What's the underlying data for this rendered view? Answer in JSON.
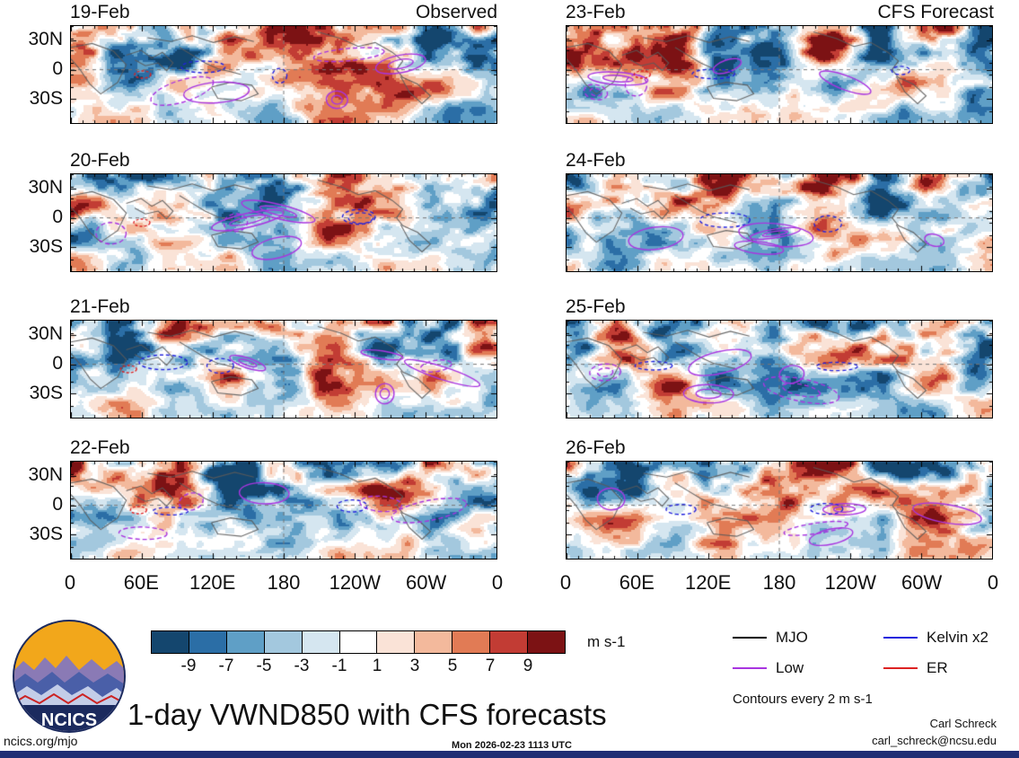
{
  "figure": {
    "title": "1-day VWND850 with CFS forecasts",
    "units_label": "m s-1",
    "contour_note": "Contours every 2 m s-1",
    "credit_name": "Carl Schreck",
    "credit_email": "carl_schreck@ncsu.edu",
    "footer_left": "ncics.org/mjo",
    "footer_center": "Mon 2026-02-23 1113 UTC",
    "logo_text": "NCICS"
  },
  "columns": [
    {
      "header": "Observed"
    },
    {
      "header": "CFS Forecast"
    }
  ],
  "panels": [
    {
      "date": "19-Feb",
      "column": "Observed"
    },
    {
      "date": "20-Feb",
      "column": "Observed"
    },
    {
      "date": "21-Feb",
      "column": "Observed"
    },
    {
      "date": "22-Feb",
      "column": "Observed"
    },
    {
      "date": "23-Feb",
      "column": "CFS Forecast"
    },
    {
      "date": "24-Feb",
      "column": "CFS Forecast"
    },
    {
      "date": "25-Feb",
      "column": "CFS Forecast"
    },
    {
      "date": "26-Feb",
      "column": "CFS Forecast"
    }
  ],
  "axes": {
    "y_ticks": [
      "30N",
      "0",
      "30S"
    ],
    "x_ticks": [
      "0",
      "60E",
      "120E",
      "180",
      "120W",
      "60W",
      "0"
    ]
  },
  "legend": [
    {
      "label": "MJO",
      "color": "#000000"
    },
    {
      "label": "Low",
      "color": "#a835e0"
    },
    {
      "label": "Kelvin x2",
      "color": "#2222dd"
    },
    {
      "label": "ER",
      "color": "#dd2222"
    }
  ],
  "colorbar": {
    "tick_labels": [
      "-9",
      "-7",
      "-5",
      "-3",
      "-1",
      "1",
      "3",
      "5",
      "7",
      "9"
    ]
  },
  "chart_data": {
    "type": "heatmap",
    "subtype": "filled-contour longitude-latitude anomaly maps",
    "title": "1-day VWND850 with CFS forecasts",
    "variable": "VWND850 (850-hPa meridional wind)",
    "units": "m s-1",
    "description": "Eight global tropical-strip maps (approx 45N-45S, 0-360 longitude). Left column: Observed daily maps for 19-22 Feb. Right column: CFS Forecast maps for 23-26 Feb. Shading shows wind anomalies from -9 to 9 m s-1; wave-filtered contours (MJO black, Low purple, Kelvin x2 blue, ER red) every 2 m s-1; dashed gridlines at the equator and the 180 meridian.",
    "panels": [
      {
        "date": "19-Feb",
        "column": "Observed"
      },
      {
        "date": "20-Feb",
        "column": "Observed"
      },
      {
        "date": "21-Feb",
        "column": "Observed"
      },
      {
        "date": "22-Feb",
        "column": "Observed"
      },
      {
        "date": "23-Feb",
        "column": "CFS Forecast"
      },
      {
        "date": "24-Feb",
        "column": "CFS Forecast"
      },
      {
        "date": "25-Feb",
        "column": "CFS Forecast"
      },
      {
        "date": "26-Feb",
        "column": "CFS Forecast"
      }
    ],
    "x_ticks": [
      "0",
      "60E",
      "120E",
      "180",
      "120W",
      "60W",
      "0"
    ],
    "y_ticks": [
      "30N",
      "0",
      "30S"
    ],
    "color_levels": [
      -9,
      -7,
      -5,
      -3,
      -1,
      1,
      3,
      5,
      7,
      9
    ],
    "colorbar_colors": [
      "#14466e",
      "#2b6ea6",
      "#5f9fc6",
      "#a3c8de",
      "#d5e6f0",
      "#ffffff",
      "#fae3d7",
      "#f3b99c",
      "#e17b55",
      "#c23c34",
      "#7c1214"
    ],
    "contour_interval": "Contours every 2 m s-1",
    "contour_series": [
      {
        "name": "MJO",
        "color": "#000000"
      },
      {
        "name": "Low",
        "color": "#a835e0"
      },
      {
        "name": "Kelvin x2",
        "color": "#2222dd"
      },
      {
        "name": "ER",
        "color": "#dd2222"
      }
    ],
    "gridlines": {
      "equator_dashed": true,
      "dateline_180_dashed": true
    }
  }
}
